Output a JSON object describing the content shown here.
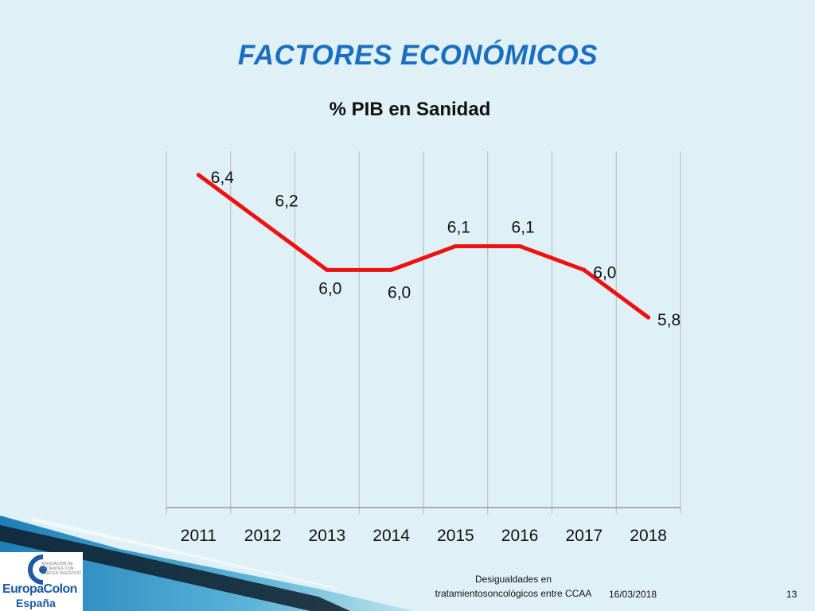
{
  "slide": {
    "title": "FACTORES ECONÓMICOS"
  },
  "chart_data": {
    "type": "line",
    "title": "% PIB en Sanidad",
    "categories": [
      "2011",
      "2012",
      "2013",
      "2014",
      "2015",
      "2016",
      "2017",
      "2018"
    ],
    "values": [
      6.4,
      6.2,
      6.0,
      6.0,
      6.1,
      6.1,
      6.0,
      5.8
    ],
    "data_labels": [
      "6,4",
      "6,2",
      "6,0",
      "6,0",
      "6,1",
      "6,1",
      "6,0",
      "5,8"
    ],
    "ylim": [
      5.0,
      6.5
    ],
    "grid": "vertical",
    "line_color": "#ee1111",
    "legend": "none"
  },
  "footer": {
    "description_line1": "Desigualdades en",
    "description_line2": "tratamientosoncológicos entre CCAA",
    "date": "16/03/2018",
    "page_number": "13"
  },
  "logo": {
    "name": "EuropaColon",
    "subname": "España",
    "tagline": "ASOCIACIÓN DE PACIENTES CON CÁNCER DIGESTIVO"
  },
  "colors": {
    "background": "#dff1f6",
    "title": "#1b6fc0",
    "accent_band": "#2a8fc0"
  }
}
